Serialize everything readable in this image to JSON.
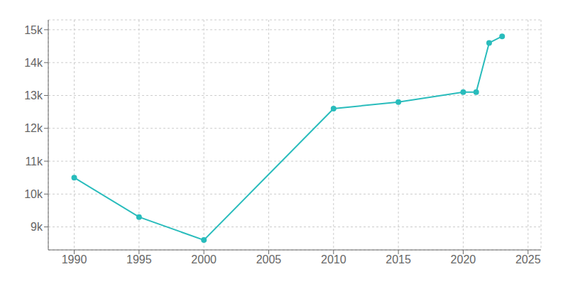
{
  "chart_data": {
    "type": "line",
    "x": [
      1990,
      1995,
      2000,
      2010,
      2015,
      2020,
      2021,
      2022,
      2023
    ],
    "values": [
      10500,
      9300,
      8600,
      12600,
      12800,
      13100,
      13100,
      14600,
      14800
    ],
    "color": "#29bcbc",
    "marker": "o",
    "xlim": [
      1988,
      2026
    ],
    "ylim": [
      8300,
      15300
    ],
    "xticks": [
      1990,
      1995,
      2000,
      2005,
      2010,
      2015,
      2020,
      2025
    ],
    "yticks": [
      {
        "value": 9000,
        "label": "9k"
      },
      {
        "value": 10000,
        "label": "10k"
      },
      {
        "value": 11000,
        "label": "11k"
      },
      {
        "value": 12000,
        "label": "12k"
      },
      {
        "value": 13000,
        "label": "13k"
      },
      {
        "value": 14000,
        "label": "14k"
      },
      {
        "value": 15000,
        "label": "15k"
      }
    ],
    "grid": true
  }
}
